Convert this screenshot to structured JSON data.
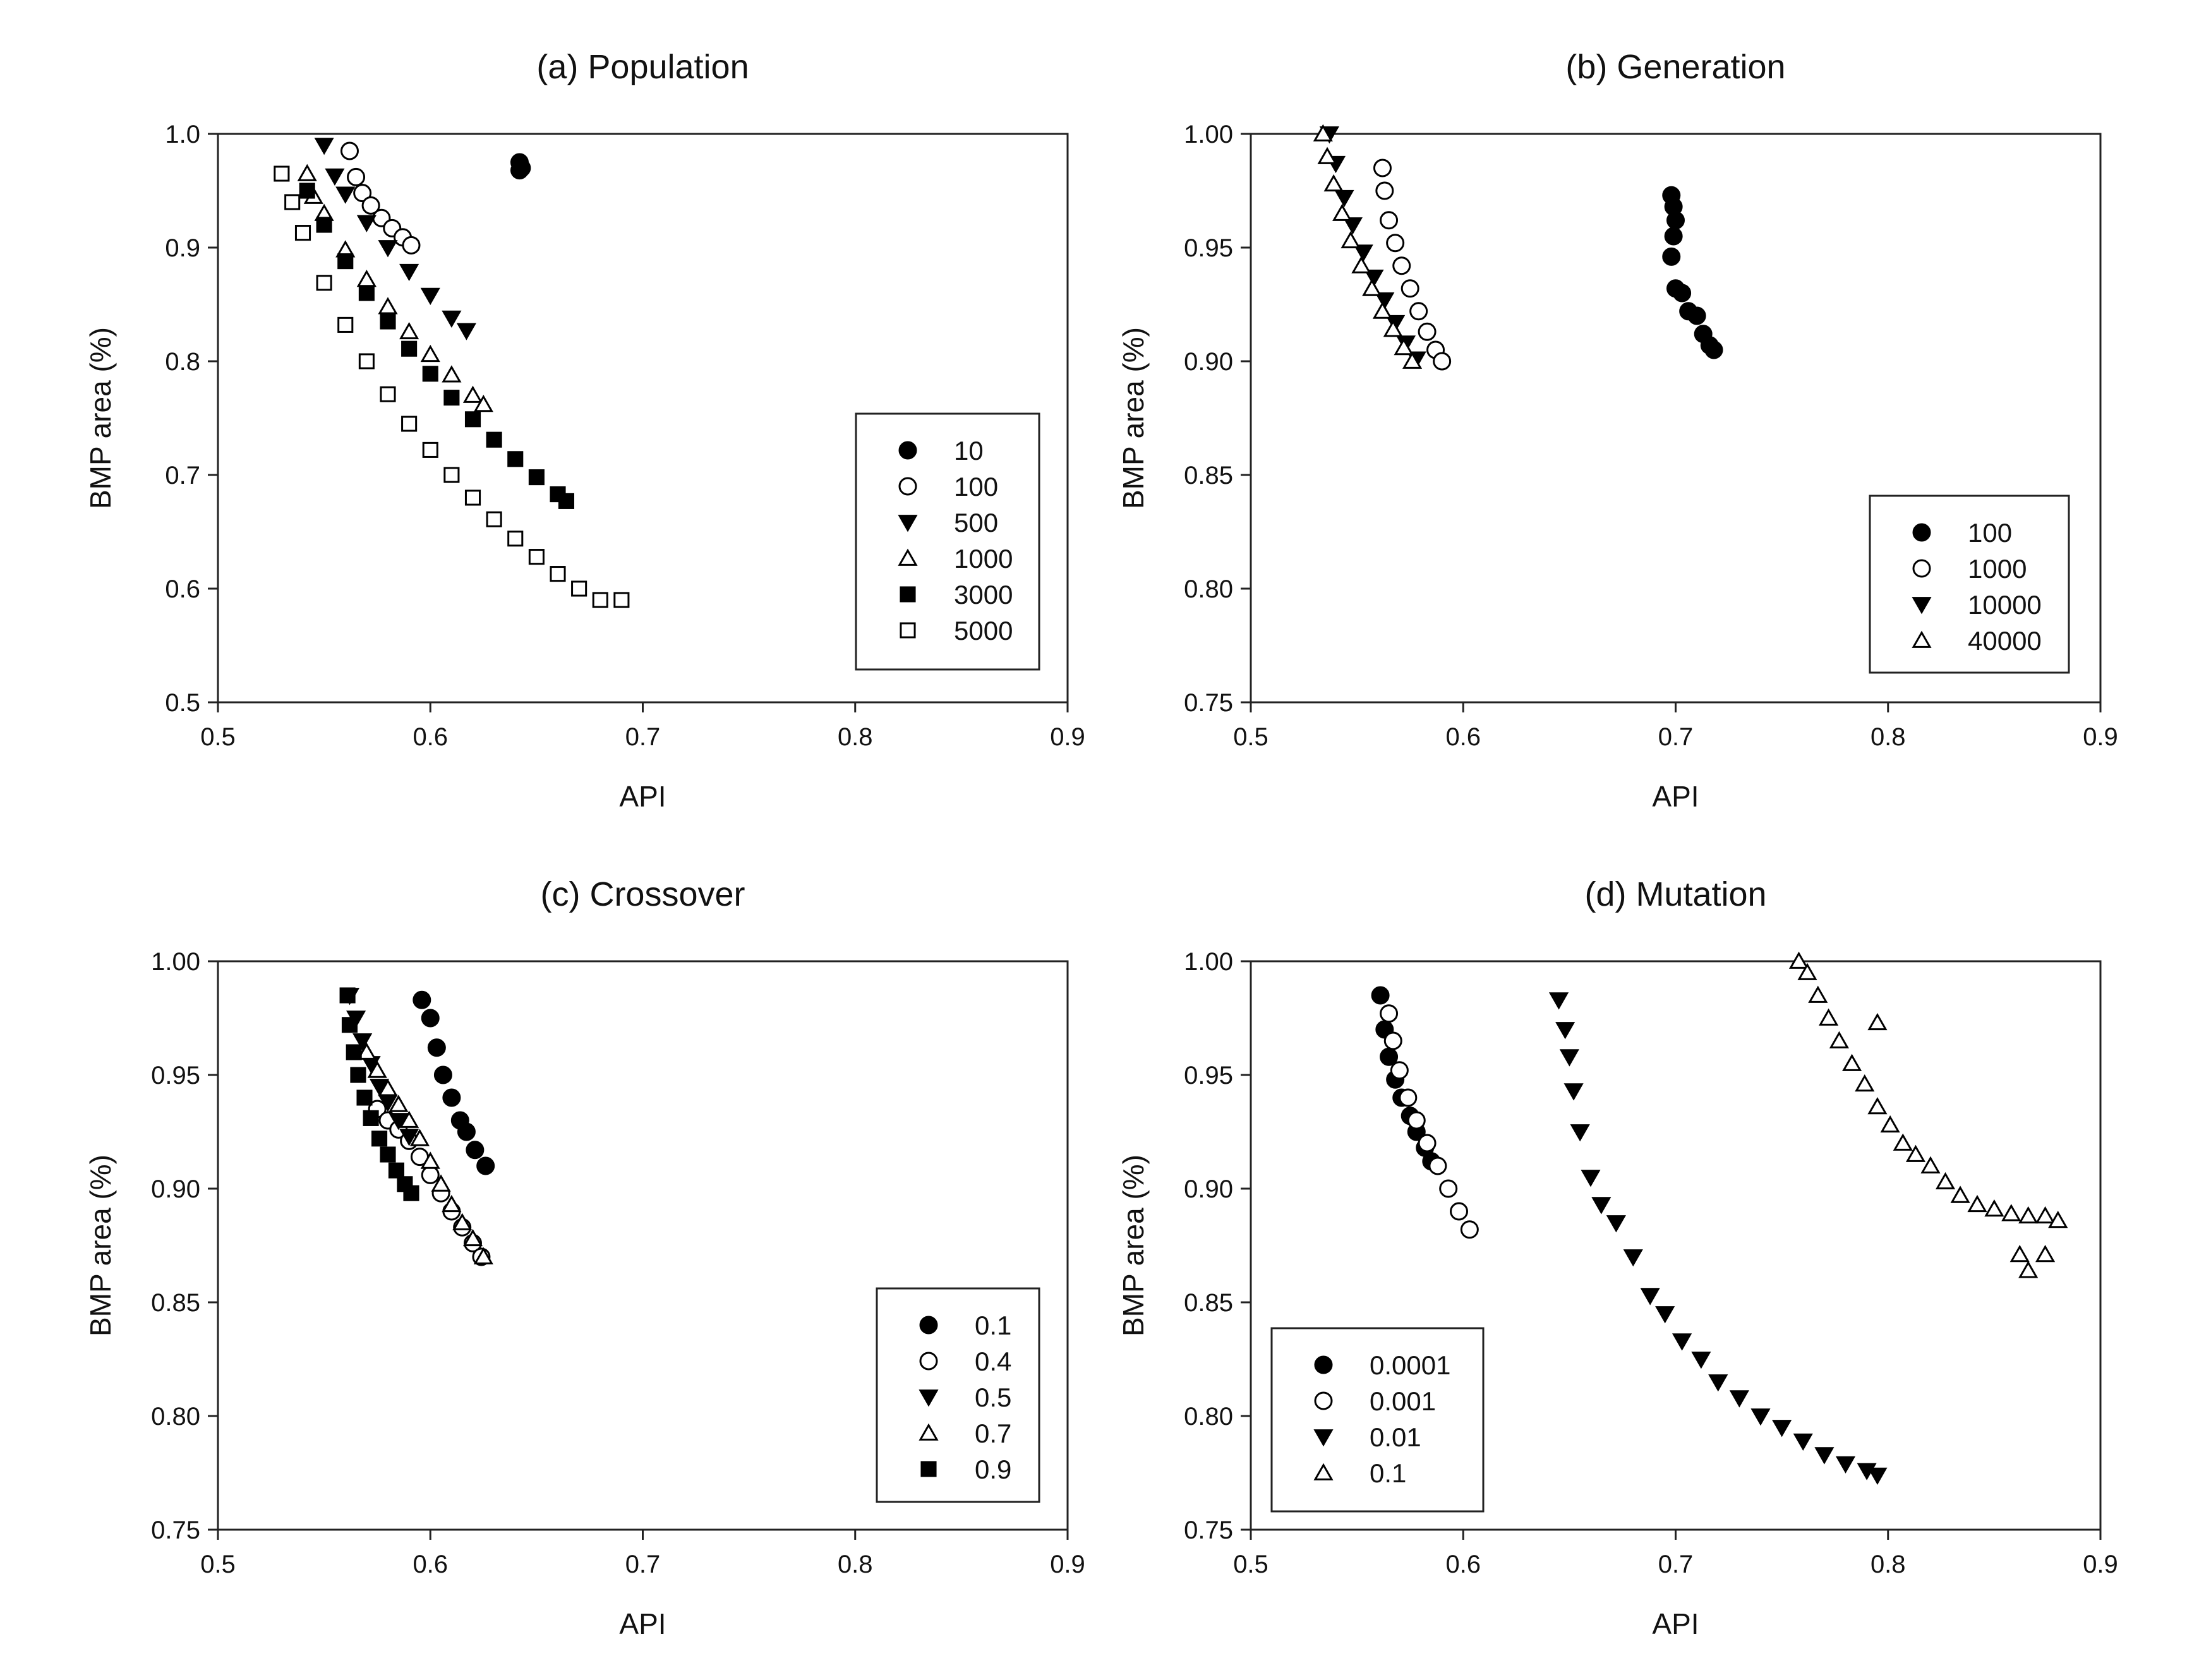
{
  "chart_data": [
    {
      "id": "a",
      "type": "scatter",
      "title": "(a) Population",
      "xlabel": "API",
      "ylabel": "BMP area (%)",
      "xlim": [
        0.5,
        0.9
      ],
      "ylim": [
        0.5,
        1.0
      ],
      "xticks": [
        "0.5",
        "0.6",
        "0.7",
        "0.8",
        "0.9"
      ],
      "yticks": [
        "0.5",
        "0.6",
        "0.7",
        "0.8",
        "0.9",
        "1.0"
      ],
      "legend_position": "right",
      "series": [
        {
          "name": "10",
          "marker": "filled-circle",
          "x": [
            0.642,
            0.643,
            0.642
          ],
          "y": [
            0.975,
            0.97,
            0.968
          ]
        },
        {
          "name": "100",
          "marker": "open-circle",
          "x": [
            0.562,
            0.565,
            0.568,
            0.572,
            0.577,
            0.582,
            0.587,
            0.591
          ],
          "y": [
            0.985,
            0.962,
            0.948,
            0.937,
            0.926,
            0.917,
            0.909,
            0.902
          ]
        },
        {
          "name": "500",
          "marker": "filled-triangle-down",
          "x": [
            0.55,
            0.555,
            0.56,
            0.57,
            0.58,
            0.59,
            0.6,
            0.61,
            0.617
          ],
          "y": [
            0.99,
            0.963,
            0.947,
            0.922,
            0.9,
            0.879,
            0.858,
            0.838,
            0.827
          ]
        },
        {
          "name": "1000",
          "marker": "open-triangle-up",
          "x": [
            0.542,
            0.545,
            0.55,
            0.56,
            0.57,
            0.58,
            0.59,
            0.6,
            0.61,
            0.62,
            0.625
          ],
          "y": [
            0.965,
            0.945,
            0.93,
            0.898,
            0.872,
            0.848,
            0.826,
            0.806,
            0.788,
            0.77,
            0.762
          ]
        },
        {
          "name": "3000",
          "marker": "filled-square",
          "x": [
            0.542,
            0.55,
            0.56,
            0.57,
            0.58,
            0.59,
            0.6,
            0.61,
            0.62,
            0.63,
            0.64,
            0.65,
            0.66,
            0.664
          ],
          "y": [
            0.95,
            0.92,
            0.888,
            0.86,
            0.835,
            0.811,
            0.789,
            0.768,
            0.749,
            0.731,
            0.714,
            0.698,
            0.683,
            0.677
          ]
        },
        {
          "name": "5000",
          "marker": "open-square",
          "x": [
            0.53,
            0.535,
            0.54,
            0.55,
            0.56,
            0.57,
            0.58,
            0.59,
            0.6,
            0.61,
            0.62,
            0.63,
            0.64,
            0.65,
            0.66,
            0.67,
            0.68,
            0.69
          ],
          "y": [
            0.965,
            0.94,
            0.913,
            0.869,
            0.832,
            0.8,
            0.771,
            0.745,
            0.722,
            0.7,
            0.68,
            0.661,
            0.644,
            0.628,
            0.613,
            0.6,
            0.59,
            0.59
          ]
        }
      ]
    },
    {
      "id": "b",
      "type": "scatter",
      "title": "(b) Generation",
      "xlabel": "API",
      "ylabel": "BMP area (%)",
      "xlim": [
        0.5,
        0.9
      ],
      "ylim": [
        0.75,
        1.0
      ],
      "xticks": [
        "0.5",
        "0.6",
        "0.7",
        "0.8",
        "0.9"
      ],
      "yticks": [
        "0.75",
        "0.80",
        "0.85",
        "0.90",
        "0.95",
        "1.00"
      ],
      "legend_position": "bottom-right",
      "series": [
        {
          "name": "100",
          "marker": "filled-circle",
          "x": [
            0.698,
            0.699,
            0.7,
            0.699,
            0.698,
            0.7,
            0.703,
            0.706,
            0.71,
            0.713,
            0.716,
            0.718
          ],
          "y": [
            0.973,
            0.968,
            0.962,
            0.955,
            0.946,
            0.932,
            0.93,
            0.922,
            0.92,
            0.912,
            0.907,
            0.905
          ]
        },
        {
          "name": "1000",
          "marker": "open-circle",
          "x": [
            0.562,
            0.563,
            0.565,
            0.568,
            0.571,
            0.575,
            0.579,
            0.583,
            0.587,
            0.59
          ],
          "y": [
            0.985,
            0.975,
            0.962,
            0.952,
            0.942,
            0.932,
            0.922,
            0.913,
            0.905,
            0.9
          ]
        },
        {
          "name": "10000",
          "marker": "filled-triangle-down",
          "x": [
            0.537,
            0.54,
            0.544,
            0.548,
            0.553,
            0.558,
            0.563,
            0.568,
            0.573,
            0.578
          ],
          "y": [
            1.0,
            0.987,
            0.972,
            0.96,
            0.948,
            0.937,
            0.927,
            0.917,
            0.908,
            0.901
          ]
        },
        {
          "name": "40000",
          "marker": "open-triangle-up",
          "x": [
            0.534,
            0.536,
            0.539,
            0.543,
            0.547,
            0.552,
            0.557,
            0.562,
            0.567,
            0.572,
            0.576
          ],
          "y": [
            1.0,
            0.99,
            0.978,
            0.965,
            0.953,
            0.942,
            0.932,
            0.922,
            0.914,
            0.906,
            0.9
          ]
        }
      ]
    },
    {
      "id": "c",
      "type": "scatter",
      "title": "(c) Crossover",
      "xlabel": "API",
      "ylabel": "BMP area (%)",
      "xlim": [
        0.5,
        0.9
      ],
      "ylim": [
        0.75,
        1.0
      ],
      "xticks": [
        "0.5",
        "0.6",
        "0.7",
        "0.8",
        "0.9"
      ],
      "yticks": [
        "0.75",
        "0.80",
        "0.85",
        "0.90",
        "0.95",
        "1.00"
      ],
      "legend_position": "bottom-right",
      "series": [
        {
          "name": "0.1",
          "marker": "filled-circle",
          "x": [
            0.596,
            0.6,
            0.603,
            0.606,
            0.61,
            0.614,
            0.617,
            0.621,
            0.626
          ],
          "y": [
            0.983,
            0.975,
            0.962,
            0.95,
            0.94,
            0.93,
            0.925,
            0.917,
            0.91
          ]
        },
        {
          "name": "0.4",
          "marker": "open-circle",
          "x": [
            0.575,
            0.58,
            0.585,
            0.59,
            0.595,
            0.6,
            0.605,
            0.61,
            0.615,
            0.62,
            0.624
          ],
          "y": [
            0.935,
            0.93,
            0.926,
            0.921,
            0.914,
            0.906,
            0.898,
            0.89,
            0.883,
            0.876,
            0.87
          ]
        },
        {
          "name": "0.5",
          "marker": "filled-triangle-down",
          "x": [
            0.562,
            0.565,
            0.568,
            0.572,
            0.576,
            0.58,
            0.585,
            0.59
          ],
          "y": [
            0.985,
            0.975,
            0.965,
            0.955,
            0.945,
            0.938,
            0.93,
            0.923
          ]
        },
        {
          "name": "0.7",
          "marker": "open-triangle-up",
          "x": [
            0.57,
            0.575,
            0.58,
            0.585,
            0.59,
            0.595,
            0.6,
            0.605,
            0.61,
            0.615,
            0.62,
            0.625
          ],
          "y": [
            0.96,
            0.952,
            0.944,
            0.937,
            0.93,
            0.922,
            0.912,
            0.902,
            0.893,
            0.885,
            0.878,
            0.87
          ]
        },
        {
          "name": "0.9",
          "marker": "filled-square",
          "x": [
            0.561,
            0.562,
            0.564,
            0.566,
            0.569,
            0.572,
            0.576,
            0.58,
            0.584,
            0.588,
            0.591
          ],
          "y": [
            0.985,
            0.972,
            0.96,
            0.95,
            0.94,
            0.931,
            0.922,
            0.915,
            0.908,
            0.902,
            0.898
          ]
        }
      ]
    },
    {
      "id": "d",
      "type": "scatter",
      "title": "(d) Mutation",
      "xlabel": "API",
      "ylabel": "BMP area (%)",
      "xlim": [
        0.5,
        0.9
      ],
      "ylim": [
        0.75,
        1.0
      ],
      "xticks": [
        "0.5",
        "0.6",
        "0.7",
        "0.8",
        "0.9"
      ],
      "yticks": [
        "0.75",
        "0.80",
        "0.85",
        "0.90",
        "0.95",
        "1.00"
      ],
      "legend_position": "bottom-left",
      "series": [
        {
          "name": "0.0001",
          "marker": "filled-circle",
          "x": [
            0.561,
            0.563,
            0.565,
            0.568,
            0.571,
            0.575,
            0.578,
            0.582,
            0.585
          ],
          "y": [
            0.985,
            0.97,
            0.958,
            0.948,
            0.94,
            0.932,
            0.925,
            0.918,
            0.912
          ]
        },
        {
          "name": "0.001",
          "marker": "open-circle",
          "x": [
            0.565,
            0.567,
            0.57,
            0.574,
            0.578,
            0.583,
            0.588,
            0.593,
            0.598,
            0.603
          ],
          "y": [
            0.977,
            0.965,
            0.952,
            0.94,
            0.93,
            0.92,
            0.91,
            0.9,
            0.89,
            0.882
          ]
        },
        {
          "name": "0.01",
          "marker": "filled-triangle-down",
          "x": [
            0.645,
            0.648,
            0.65,
            0.652,
            0.655,
            0.66,
            0.665,
            0.672,
            0.68,
            0.688,
            0.695,
            0.703,
            0.712,
            0.72,
            0.73,
            0.74,
            0.75,
            0.76,
            0.77,
            0.78,
            0.79,
            0.795
          ],
          "y": [
            0.983,
            0.97,
            0.958,
            0.943,
            0.925,
            0.905,
            0.893,
            0.885,
            0.87,
            0.853,
            0.845,
            0.833,
            0.825,
            0.815,
            0.808,
            0.8,
            0.795,
            0.789,
            0.783,
            0.779,
            0.776,
            0.774
          ]
        },
        {
          "name": "0.1",
          "marker": "open-triangle-up",
          "x": [
            0.758,
            0.762,
            0.767,
            0.772,
            0.777,
            0.783,
            0.789,
            0.795,
            0.801,
            0.807,
            0.813,
            0.82,
            0.827,
            0.834,
            0.842,
            0.85,
            0.858,
            0.866,
            0.874,
            0.88,
            0.862,
            0.866,
            0.874,
            0.795
          ],
          "y": [
            1.0,
            0.995,
            0.985,
            0.975,
            0.965,
            0.955,
            0.946,
            0.936,
            0.928,
            0.92,
            0.915,
            0.91,
            0.903,
            0.897,
            0.893,
            0.891,
            0.889,
            0.888,
            0.888,
            0.886,
            0.871,
            0.864,
            0.871,
            0.973
          ]
        }
      ]
    }
  ]
}
